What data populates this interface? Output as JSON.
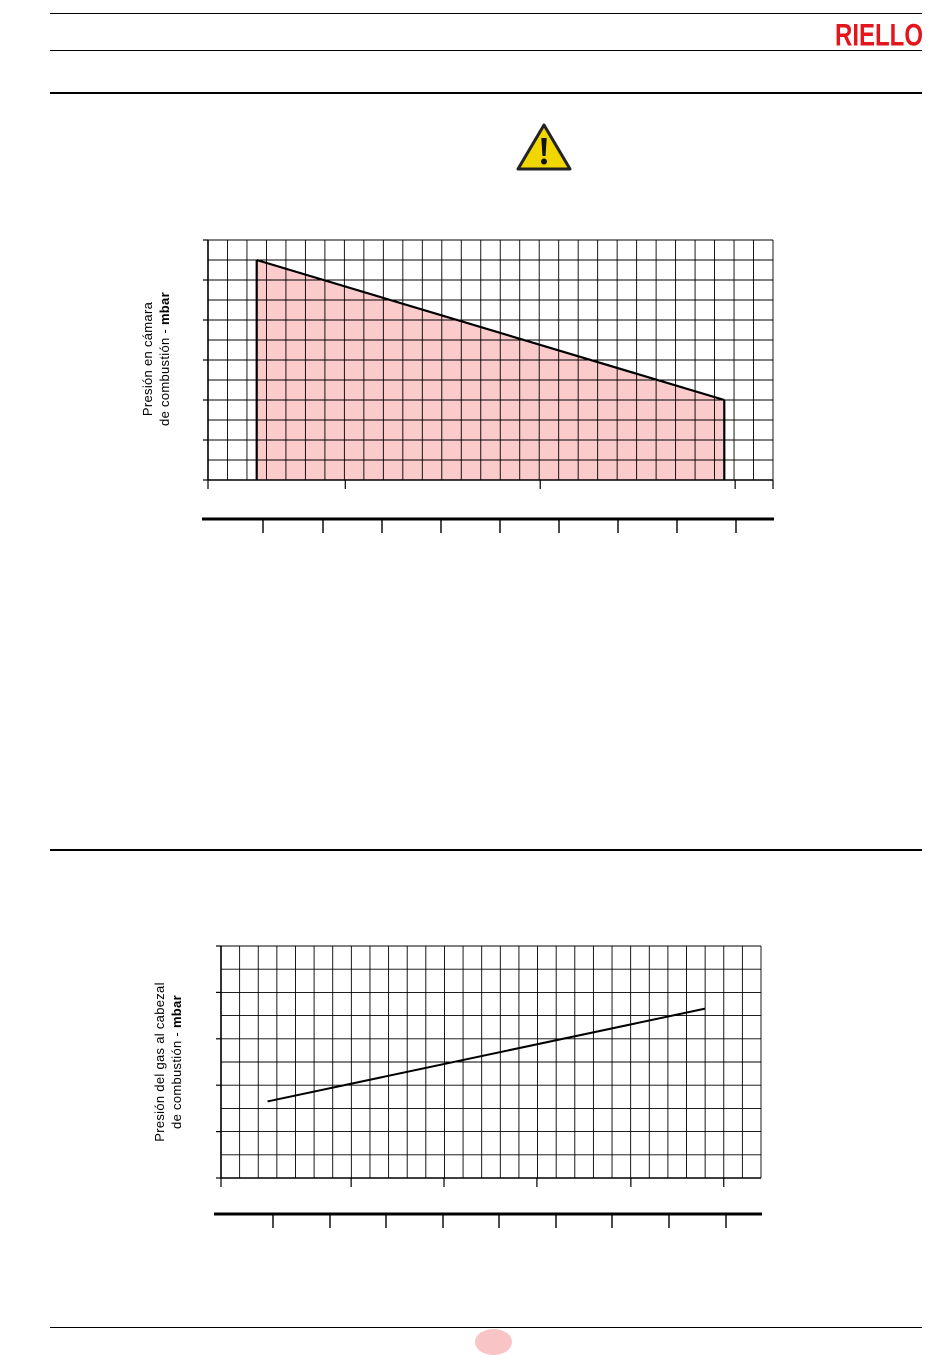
{
  "header": {
    "brand": "RIELLO",
    "brand_color": "#e3161d"
  },
  "warning": {
    "icon": "warning-triangle-icon",
    "color": "#f2d600"
  },
  "charts": {
    "chamber": {
      "ylabel_line1": "Presión en cámara",
      "ylabel_line2_prefix": "de combustión - ",
      "ylabel_unit": "mbar",
      "fill_color": "#fbcaca"
    },
    "head": {
      "ylabel_line1": "Presión del gas al cabezal",
      "ylabel_line2_prefix": "de combustión - ",
      "ylabel_unit": "mbar"
    }
  },
  "chart_data": [
    {
      "type": "area",
      "x_grid_divisions": 29,
      "y_grid_divisions": 12,
      "x": [
        2.5,
        26.5
      ],
      "y": [
        11,
        4
      ],
      "ylim": [
        0,
        12
      ],
      "xlim": [
        0,
        29
      ],
      "fill": "#fbcaca",
      "grid": true
    },
    {
      "type": "line",
      "x_grid_divisions": 29,
      "y_grid_divisions": 10,
      "x": [
        2.5,
        26
      ],
      "y": [
        3.3,
        7.3
      ],
      "ylim": [
        0,
        10
      ],
      "xlim": [
        0,
        29
      ],
      "grid": true
    }
  ],
  "footer": {
    "page_badge_color": "#f9c4c6"
  }
}
